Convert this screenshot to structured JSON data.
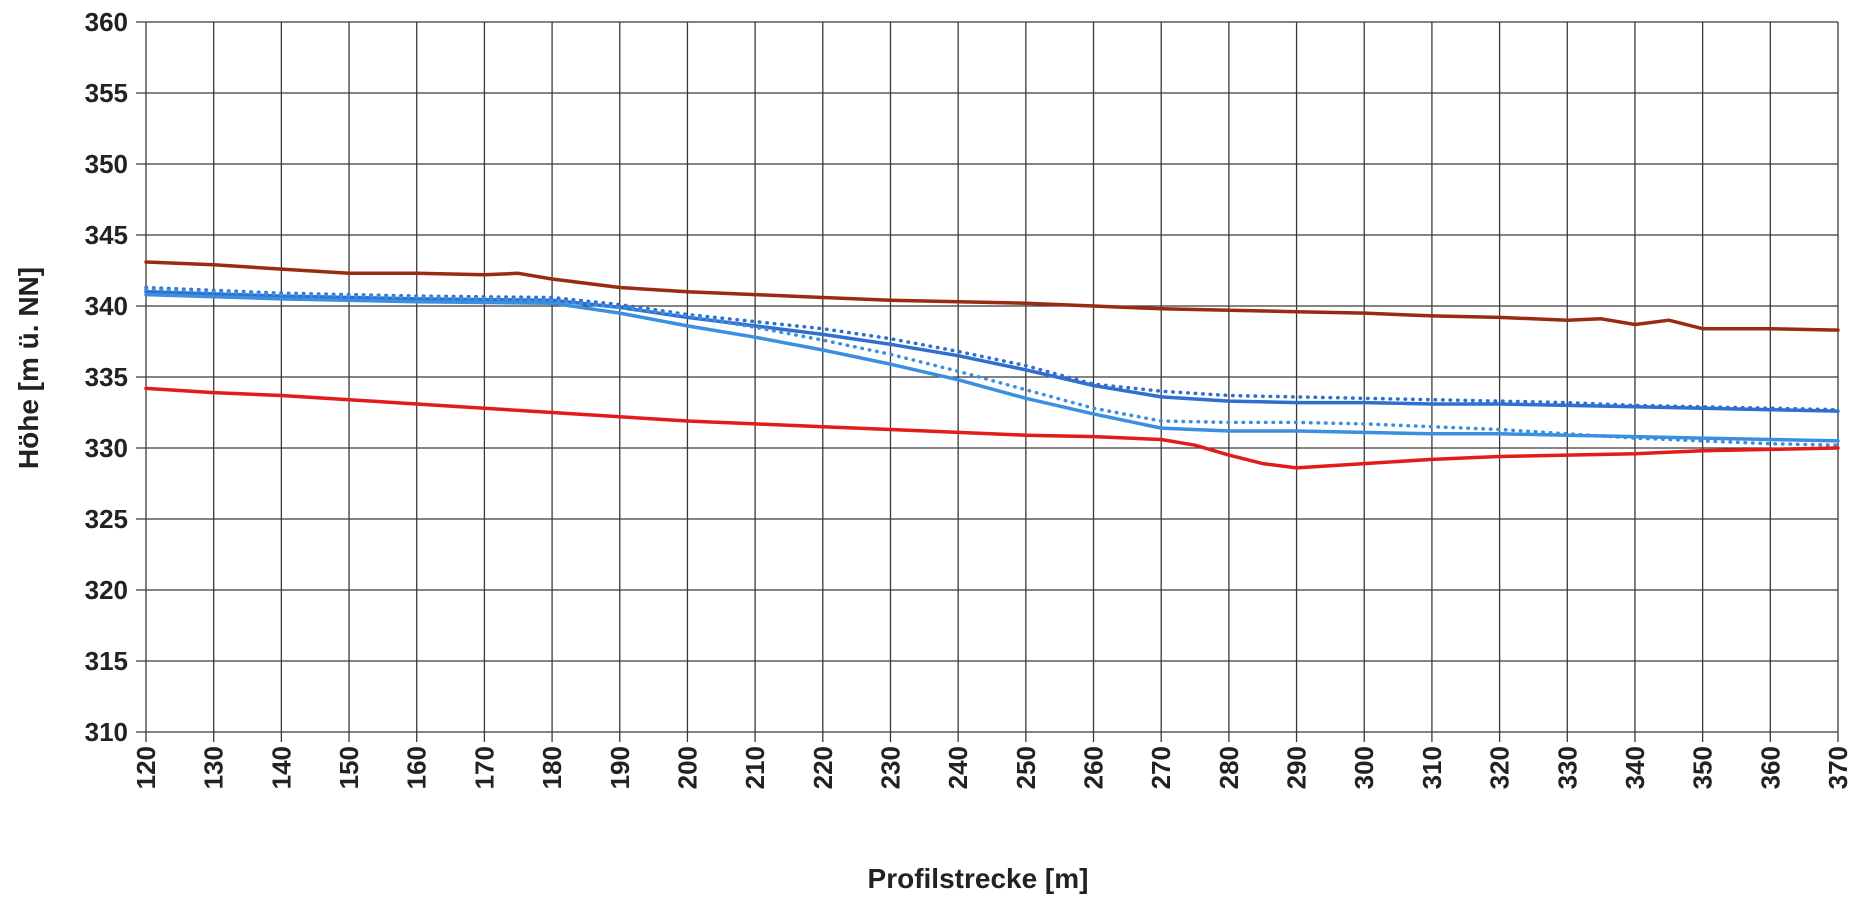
{
  "chart_data": {
    "type": "line",
    "title": "",
    "xlabel": "Profilstrecke [m]",
    "ylabel": "Höhe [m ü. NN]",
    "xlim": [
      120,
      370
    ],
    "ylim": [
      310,
      360
    ],
    "x_ticks": [
      120,
      130,
      140,
      150,
      160,
      170,
      180,
      190,
      200,
      210,
      220,
      230,
      240,
      250,
      260,
      270,
      280,
      290,
      300,
      310,
      320,
      330,
      340,
      350,
      360,
      370
    ],
    "y_ticks": [
      310,
      315,
      320,
      325,
      330,
      335,
      340,
      345,
      350,
      355,
      360
    ],
    "grid": true,
    "legend": "none",
    "series": [
      {
        "color": "#9a2a14",
        "style": "solid",
        "x": [
          120,
          130,
          140,
          150,
          160,
          170,
          175,
          180,
          190,
          200,
          210,
          220,
          230,
          240,
          250,
          260,
          270,
          280,
          290,
          300,
          310,
          320,
          330,
          335,
          340,
          345,
          350,
          360,
          370
        ],
        "y": [
          343.1,
          342.9,
          342.6,
          342.3,
          342.3,
          342.2,
          342.3,
          341.9,
          341.3,
          341.0,
          340.8,
          340.6,
          340.4,
          340.3,
          340.2,
          340.0,
          339.8,
          339.7,
          339.6,
          339.5,
          339.3,
          339.2,
          339.0,
          339.1,
          338.7,
          339.0,
          338.4,
          338.4,
          338.3
        ]
      },
      {
        "color": "#2f6fd0",
        "style": "dotted",
        "x": [
          120,
          140,
          160,
          180,
          190,
          200,
          210,
          220,
          230,
          240,
          250,
          260,
          270,
          280,
          290,
          300,
          310,
          320,
          330,
          340,
          350,
          360,
          370
        ],
        "y": [
          341.3,
          340.9,
          340.7,
          340.6,
          340.1,
          339.4,
          338.9,
          338.4,
          337.7,
          336.8,
          335.8,
          334.5,
          334.0,
          333.7,
          333.6,
          333.5,
          333.4,
          333.3,
          333.2,
          333.0,
          332.9,
          332.8,
          332.7
        ]
      },
      {
        "color": "#2f6fd0",
        "style": "solid",
        "x": [
          120,
          140,
          160,
          180,
          190,
          200,
          210,
          220,
          230,
          240,
          250,
          260,
          270,
          280,
          290,
          300,
          310,
          320,
          330,
          340,
          350,
          360,
          370
        ],
        "y": [
          341.0,
          340.7,
          340.5,
          340.4,
          339.9,
          339.2,
          338.6,
          338.0,
          337.3,
          336.5,
          335.5,
          334.4,
          333.6,
          333.3,
          333.2,
          333.2,
          333.1,
          333.1,
          333.0,
          332.9,
          332.8,
          332.7,
          332.6
        ]
      },
      {
        "color": "#3a8fe0",
        "style": "solid",
        "x": [
          120,
          140,
          160,
          180,
          190,
          200,
          210,
          220,
          230,
          240,
          250,
          260,
          270,
          280,
          290,
          300,
          310,
          320,
          330,
          340,
          350,
          360,
          370
        ],
        "y": [
          340.8,
          340.5,
          340.3,
          340.2,
          339.5,
          338.6,
          337.8,
          336.9,
          335.9,
          334.8,
          333.5,
          332.4,
          331.4,
          331.2,
          331.2,
          331.1,
          331.0,
          331.0,
          330.9,
          330.8,
          330.7,
          330.6,
          330.5
        ]
      },
      {
        "color": "#3a8fe0",
        "style": "dotted",
        "x": [
          120,
          140,
          160,
          180,
          190,
          200,
          210,
          220,
          230,
          240,
          250,
          260,
          270,
          280,
          290,
          300,
          310,
          320,
          330,
          340,
          350,
          360,
          370
        ],
        "y": [
          341.2,
          340.8,
          340.6,
          340.4,
          339.9,
          339.3,
          338.5,
          337.6,
          336.6,
          335.4,
          334.1,
          332.8,
          331.9,
          331.8,
          331.8,
          331.7,
          331.5,
          331.3,
          331.0,
          330.7,
          330.5,
          330.3,
          330.2
        ]
      },
      {
        "color": "#e21b1b",
        "style": "solid",
        "x": [
          120,
          130,
          140,
          150,
          160,
          170,
          180,
          190,
          200,
          210,
          220,
          230,
          240,
          250,
          260,
          270,
          275,
          280,
          285,
          290,
          300,
          310,
          320,
          330,
          340,
          350,
          360,
          370
        ],
        "y": [
          334.2,
          333.9,
          333.7,
          333.4,
          333.1,
          332.8,
          332.5,
          332.2,
          331.9,
          331.7,
          331.5,
          331.3,
          331.1,
          330.9,
          330.8,
          330.6,
          330.2,
          329.5,
          328.9,
          328.6,
          328.9,
          329.2,
          329.4,
          329.5,
          329.6,
          329.8,
          329.9,
          330.0
        ]
      }
    ]
  }
}
